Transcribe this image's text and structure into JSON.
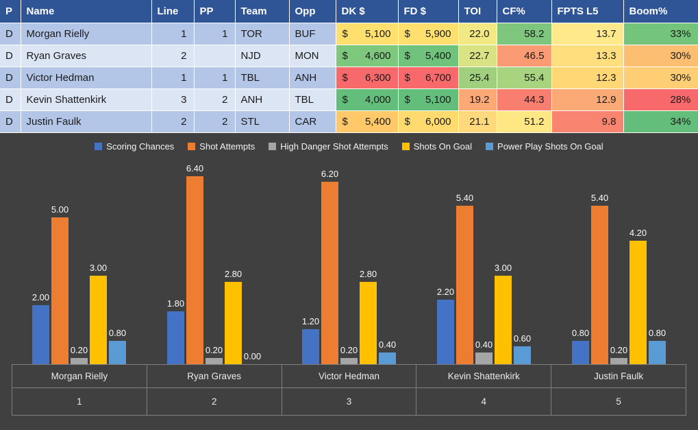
{
  "table": {
    "columns": [
      {
        "label": "P",
        "align": "left"
      },
      {
        "label": "Name",
        "align": "left"
      },
      {
        "label": "Line",
        "align": "right"
      },
      {
        "label": "PP",
        "align": "right"
      },
      {
        "label": "Team",
        "align": "left"
      },
      {
        "label": "Opp",
        "align": "left"
      },
      {
        "label": "DK $",
        "align": "money"
      },
      {
        "label": "FD $",
        "align": "money"
      },
      {
        "label": "TOI",
        "align": "right"
      },
      {
        "label": "CF%",
        "align": "right"
      },
      {
        "label": "FPTS L5",
        "align": "right"
      },
      {
        "label": "Boom%",
        "align": "right"
      }
    ],
    "theme": {
      "header_bg": "#2F5597",
      "header_text": "#FFFFFF",
      "band_odd": "#B4C6E7",
      "band_even": "#DCE5F4",
      "cell_text": "#1A1A1A"
    },
    "rows": [
      {
        "band": "odd",
        "cells": [
          {
            "t": "D"
          },
          {
            "t": "Morgan Rielly"
          },
          {
            "t": "1"
          },
          {
            "t": "1"
          },
          {
            "t": "TOR"
          },
          {
            "t": "BUF"
          },
          {
            "cur": "$",
            "t": "5,100",
            "bg": "#FFE06E"
          },
          {
            "cur": "$",
            "t": "5,900",
            "bg": "#FFDF6E"
          },
          {
            "t": "22.0",
            "bg": "#F3E984"
          },
          {
            "t": "58.2",
            "bg": "#7EC67D"
          },
          {
            "t": "13.7",
            "bg": "#FFE98A"
          },
          {
            "t": "33%",
            "bg": "#74C47C"
          }
        ]
      },
      {
        "band": "even",
        "cells": [
          {
            "t": "D"
          },
          {
            "t": "Ryan Graves"
          },
          {
            "t": "2"
          },
          {
            "t": ""
          },
          {
            "t": "NJD"
          },
          {
            "t": "MON"
          },
          {
            "cur": "$",
            "t": "4,600",
            "bg": "#7EC87D"
          },
          {
            "cur": "$",
            "t": "5,400",
            "bg": "#70C37C"
          },
          {
            "t": "22.7",
            "bg": "#D9E383"
          },
          {
            "t": "46.5",
            "bg": "#FB9B74"
          },
          {
            "t": "13.3",
            "bg": "#FFDE7E"
          },
          {
            "t": "30%",
            "bg": "#FCBF72"
          }
        ]
      },
      {
        "band": "odd",
        "cells": [
          {
            "t": "D"
          },
          {
            "t": "Victor Hedman"
          },
          {
            "t": "1"
          },
          {
            "t": "1"
          },
          {
            "t": "TBL"
          },
          {
            "t": "ANH"
          },
          {
            "cur": "$",
            "t": "6,300",
            "bg": "#F8696B"
          },
          {
            "cur": "$",
            "t": "6,700",
            "bg": "#F8696B"
          },
          {
            "t": "25.4",
            "bg": "#A0D07E"
          },
          {
            "t": "55.4",
            "bg": "#A8D47F"
          },
          {
            "t": "12.3",
            "bg": "#FFD875"
          },
          {
            "t": "30%",
            "bg": "#FECE74"
          }
        ]
      },
      {
        "band": "even",
        "cells": [
          {
            "t": "D"
          },
          {
            "t": "Kevin Shattenkirk"
          },
          {
            "t": "3"
          },
          {
            "t": "2"
          },
          {
            "t": "ANH"
          },
          {
            "t": "TBL"
          },
          {
            "cur": "$",
            "t": "4,000",
            "bg": "#63BE7B"
          },
          {
            "cur": "$",
            "t": "5,100",
            "bg": "#63BE7B"
          },
          {
            "t": "19.2",
            "bg": "#FCA976"
          },
          {
            "t": "44.3",
            "bg": "#F87E6F"
          },
          {
            "t": "12.9",
            "bg": "#FBAA75"
          },
          {
            "t": "28%",
            "bg": "#F8696B"
          }
        ]
      },
      {
        "band": "odd",
        "cells": [
          {
            "t": "D"
          },
          {
            "t": "Justin Faulk"
          },
          {
            "t": "2"
          },
          {
            "t": "2"
          },
          {
            "t": "STL"
          },
          {
            "t": "CAR"
          },
          {
            "cur": "$",
            "t": "5,400",
            "bg": "#FFC869"
          },
          {
            "cur": "$",
            "t": "6,000",
            "bg": "#FFDA6E"
          },
          {
            "t": "21.1",
            "bg": "#FFD97C"
          },
          {
            "t": "51.2",
            "bg": "#FFE884"
          },
          {
            "t": "9.8",
            "bg": "#F98570"
          },
          {
            "t": "34%",
            "bg": "#63BE7B"
          }
        ]
      }
    ]
  },
  "chart_data": {
    "type": "bar",
    "title": "",
    "categories": [
      "Morgan Rielly",
      "Ryan Graves",
      "Victor Hedman",
      "Kevin Shattenkirk",
      "Justin Faulk"
    ],
    "category_index_labels": [
      "1",
      "2",
      "3",
      "4",
      "5"
    ],
    "series": [
      {
        "name": "Scoring Chances",
        "color": "#4472C4",
        "values": [
          2.0,
          1.8,
          1.2,
          2.2,
          0.8
        ]
      },
      {
        "name": "Shot Attempts",
        "color": "#ED7D31",
        "values": [
          5.0,
          6.4,
          6.2,
          5.4,
          5.4
        ]
      },
      {
        "name": "High Danger Shot Attempts",
        "color": "#A5A5A5",
        "values": [
          0.2,
          0.2,
          0.2,
          0.4,
          0.2
        ]
      },
      {
        "name": "Shots On Goal",
        "color": "#FFC000",
        "values": [
          3.0,
          2.8,
          2.8,
          3.0,
          4.2
        ]
      },
      {
        "name": "Power Play Shots On Goal",
        "color": "#5B9BD5",
        "values": [
          0.8,
          0.0,
          0.4,
          0.6,
          0.8
        ]
      }
    ],
    "ylim": [
      0,
      7
    ],
    "data_labels": true,
    "data_label_decimals": 2,
    "legend_position": "top",
    "gridlines": false,
    "background": "#404040",
    "label_color": "#FAFAFA",
    "axis_line_color": "#7F7F7F"
  }
}
